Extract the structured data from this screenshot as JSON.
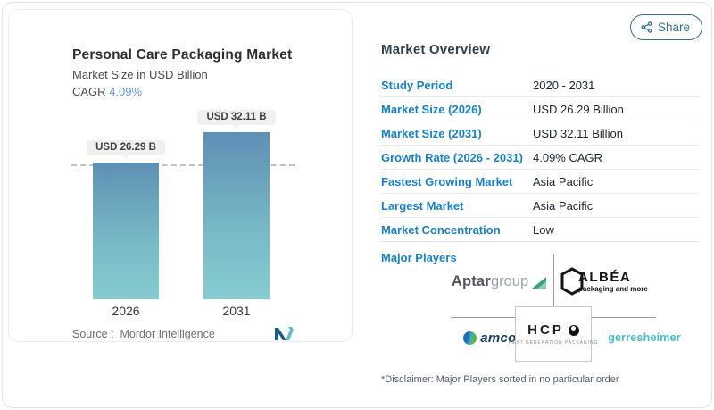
{
  "share": {
    "label": "Share"
  },
  "left_card": {
    "title": "Personal Care Packaging Market",
    "subtitle": "Market Size in USD Billion",
    "cagr_label": "CAGR",
    "cagr_value": "4.09%",
    "source_label": "Source :",
    "source_value": "Mordor Intelligence"
  },
  "chart_data": {
    "type": "bar",
    "categories": [
      "2026",
      "2031"
    ],
    "values": [
      26.29,
      32.11
    ],
    "bar_labels": [
      "USD 26.29 B",
      "USD 32.11 B"
    ],
    "title": "Personal Care Packaging Market",
    "ylabel": "Market Size in USD Billion",
    "cagr": "4.09%",
    "ylim": [
      0,
      32.11
    ],
    "reference_line": 26.29,
    "legend": "none",
    "grid": "off",
    "colors": {
      "bar_top": "#5e8fb4",
      "bar_bottom": "#85cbd0",
      "dashed_line": "#b7c4cb"
    }
  },
  "overview": {
    "heading": "Market Overview",
    "rows": [
      {
        "label": "Study Period",
        "value": "2020 - 2031"
      },
      {
        "label": "Market Size (2026)",
        "value": "USD 26.29 Billion"
      },
      {
        "label": "Market Size (2031)",
        "value": "USD 32.11 Billion"
      },
      {
        "label": "Growth Rate (2026 - 2031)",
        "value": "4.09% CAGR"
      },
      {
        "label": "Fastest Growing Market",
        "value": "Asia Pacific"
      },
      {
        "label": "Largest Market",
        "value": "Asia Pacific"
      },
      {
        "label": "Market Concentration",
        "value": "Low"
      }
    ],
    "major_players_label": "Major Players",
    "disclaimer": "*Disclaimer: Major Players sorted in no particular order"
  },
  "logos": {
    "aptar_part1": "Aptar",
    "aptar_part2": "group",
    "albea_name": "ALBÉA",
    "albea_tagline": "packaging and more",
    "amcor_name": "amcor",
    "hcp_name": "HCP",
    "hcp_tagline": "NEXT GENERATION PACKAGING",
    "gerresheimer_name": "gerresheimer"
  },
  "colors": {
    "accent_blue": "#1b80c4",
    "share_teal": "#356f8c",
    "cagr_blue": "#5d9bcc"
  }
}
